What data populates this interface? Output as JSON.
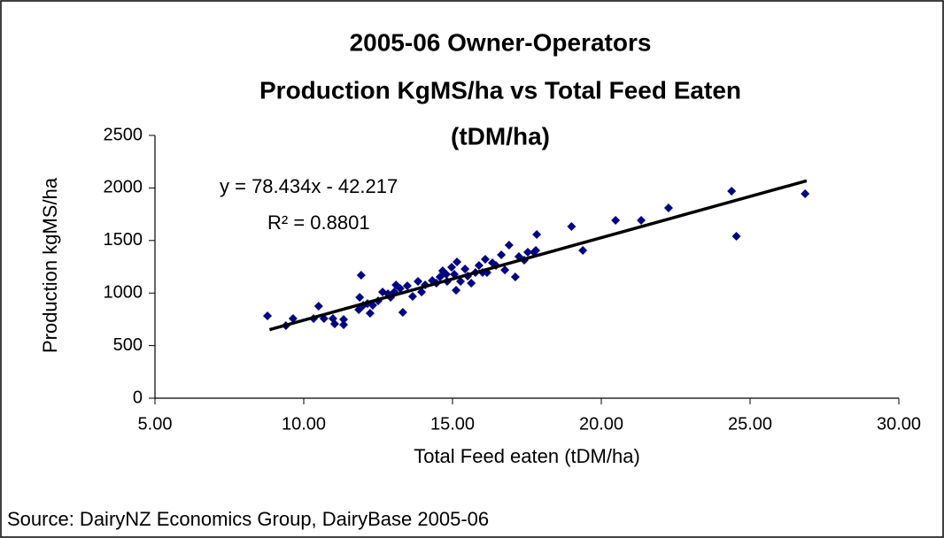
{
  "chart_data": {
    "type": "scatter",
    "title": [
      "2005-06 Owner-Operators",
      "Production KgMS/ha vs Total Feed Eaten",
      "(tDM/ha)"
    ],
    "x_label": "Total Feed eaten (tDM/ha)",
    "y_label": "Production kgMS/ha",
    "source": "Source:  DairyNZ Economics Group, DairyBase 2005-06",
    "annotations": [
      "y = 78.434x - 42.217",
      "R² = 0.8801"
    ],
    "xlim": [
      5,
      30
    ],
    "xticks": [
      {
        "value": 5,
        "label": "5.00"
      },
      {
        "value": 10,
        "label": "10.00"
      },
      {
        "value": 15,
        "label": "15.00"
      },
      {
        "value": 20,
        "label": "20.00"
      },
      {
        "value": 25,
        "label": "25.00"
      },
      {
        "value": 30,
        "label": "30.00"
      }
    ],
    "ylim": [
      0,
      2500
    ],
    "yticks": [
      0,
      500,
      1000,
      1500,
      2000,
      2500
    ],
    "grid": false,
    "series": [
      {
        "color": "#000080",
        "x": [
          8.78,
          9.4,
          9.64,
          10.5,
          10.33,
          10.68,
          10.98,
          11.04,
          11.34,
          11.34,
          11.85,
          11.93,
          11.88,
          12.0,
          12.14,
          12.23,
          12.32,
          12.5,
          12.65,
          12.83,
          12.92,
          13.04,
          13.1,
          13.24,
          13.33,
          13.48,
          13.66,
          13.84,
          13.96,
          14.08,
          14.32,
          14.46,
          14.58,
          14.67,
          14.79,
          14.82,
          14.97,
          15.06,
          15.12,
          15.15,
          15.27,
          15.42,
          15.51,
          15.63,
          15.77,
          15.89,
          16.01,
          16.1,
          16.16,
          16.34,
          16.46,
          16.64,
          16.76,
          16.9,
          17.11,
          17.23,
          17.41,
          17.53,
          17.74,
          17.83,
          17.8,
          19.0,
          19.38,
          20.48,
          21.34,
          22.26,
          24.38,
          24.54,
          26.85
        ],
        "values": [
          783,
          690,
          758,
          875,
          758,
          758,
          758,
          707,
          749,
          699,
          842,
          1170,
          960,
          884,
          900,
          808,
          884,
          926,
          1010,
          993,
          960,
          1010,
          1077,
          1044,
          817,
          1069,
          968,
          1111,
          1010,
          1077,
          1120,
          1094,
          1153,
          1212,
          1178,
          1111,
          1246,
          1178,
          1027,
          1296,
          1111,
          1229,
          1162,
          1094,
          1195,
          1263,
          1195,
          1322,
          1195,
          1288,
          1263,
          1364,
          1220,
          1456,
          1153,
          1347,
          1313,
          1389,
          1389,
          1557,
          1406,
          1633,
          1406,
          1692,
          1692,
          1810,
          1970,
          1540,
          1944
        ]
      }
    ],
    "trendline": {
      "color": "#000000",
      "x": [
        8.85,
        26.9
      ],
      "values": [
        652,
        2068
      ]
    }
  }
}
